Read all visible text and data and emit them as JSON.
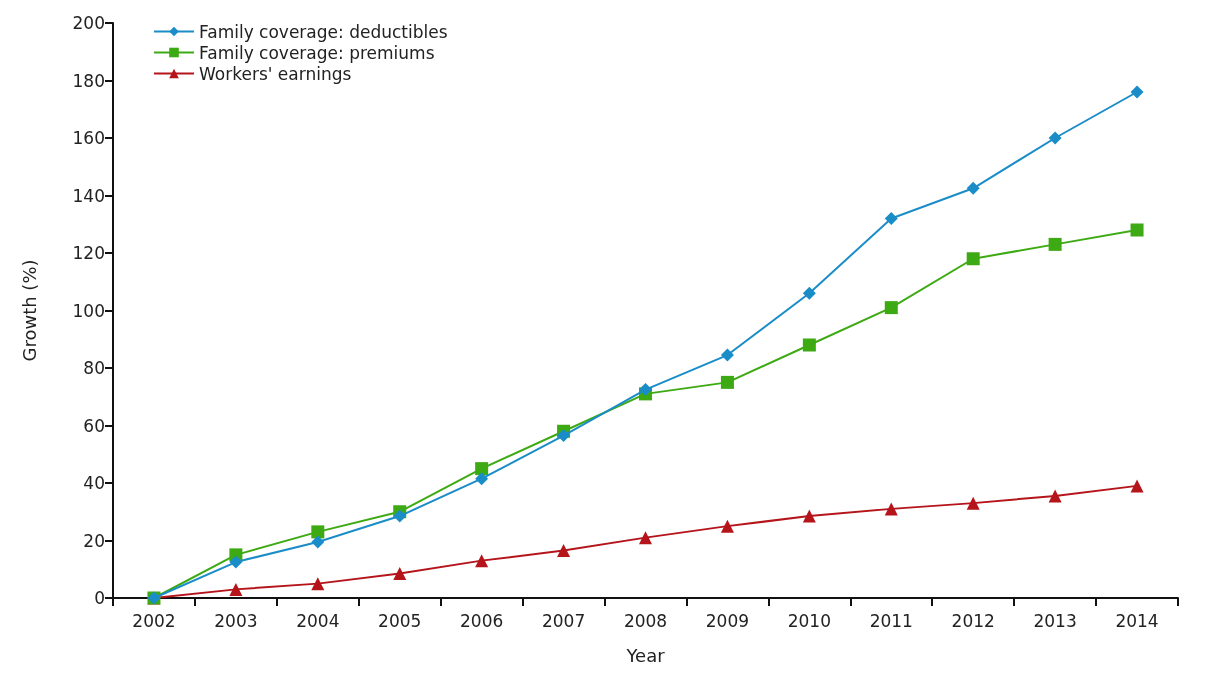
{
  "chart_data": {
    "type": "line",
    "xlabel": "Year",
    "ylabel": "Growth (%)",
    "categories": [
      "2002",
      "2003",
      "2004",
      "2005",
      "2006",
      "2007",
      "2008",
      "2009",
      "2010",
      "2011",
      "2012",
      "2013",
      "2014"
    ],
    "series": [
      {
        "name": "Family coverage: deductibles",
        "color": "#1a8dc8",
        "marker": "diamond",
        "values": [
          0,
          12.5,
          19.5,
          28.5,
          41.5,
          56.5,
          72.5,
          84.5,
          106,
          132,
          142.5,
          160,
          176
        ]
      },
      {
        "name": "Family coverage: premiums",
        "color": "#3daa14",
        "marker": "square",
        "values": [
          0,
          15,
          23,
          30,
          45,
          58,
          71,
          75,
          88,
          101,
          118,
          123,
          128
        ]
      },
      {
        "name": "Workers' earnings",
        "color": "#b5141b",
        "marker": "triangle",
        "values": [
          0,
          3,
          5,
          8.5,
          13,
          16.5,
          21,
          25,
          28.5,
          31,
          33,
          35.5,
          39
        ]
      }
    ],
    "ylim": [
      0,
      200
    ],
    "yticks": [
      0,
      20,
      40,
      60,
      80,
      100,
      120,
      140,
      160,
      180,
      200
    ],
    "grid": false,
    "legend": "top left",
    "line_style": "solid"
  }
}
